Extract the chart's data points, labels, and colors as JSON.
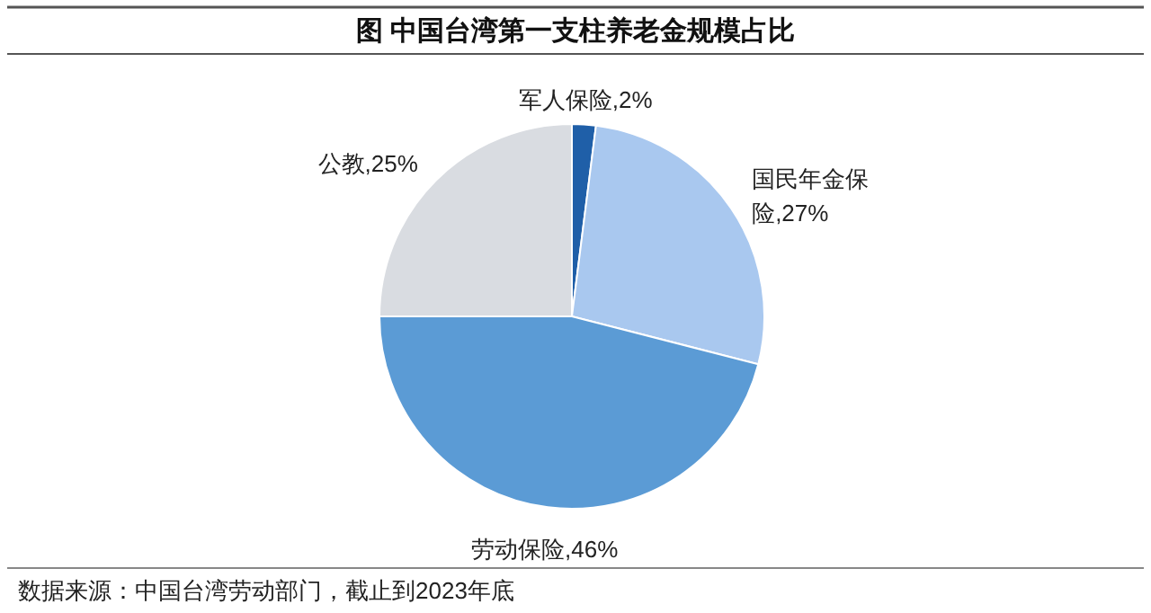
{
  "chart_data": {
    "type": "pie",
    "title": "图  中国台湾第一支柱养老金规模占比",
    "categories": [
      "军人保险",
      "国民年金保险",
      "劳动保险",
      "公教"
    ],
    "values": [
      2,
      27,
      46,
      25
    ],
    "value_labels": [
      "2%",
      "27%",
      "46%",
      "25%"
    ],
    "colors": [
      "#1f5fa8",
      "#a9c8ef",
      "#5b9bd5",
      "#d9dce1"
    ],
    "annotations": [
      "数据来源：中国台湾劳动部门，截止到2023年底"
    ]
  }
}
